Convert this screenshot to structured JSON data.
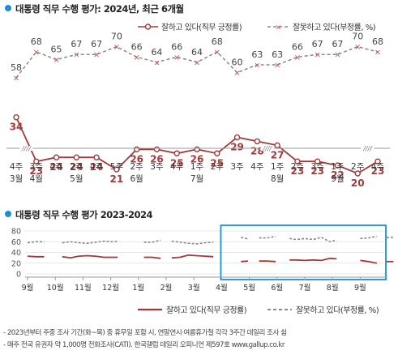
{
  "chart_data": [
    {
      "type": "line",
      "title": "대통령 직무 수행 평가: 2024년, 최근 6개월",
      "legend_placement": "top-right",
      "grid": false,
      "x_labels": [
        {
          "week": "4주",
          "month": "3월"
        },
        {
          "week": "3주",
          "month": "4월"
        },
        {
          "week": "4주",
          "month": ""
        },
        {
          "week": "2주",
          "month": "5월"
        },
        {
          "week": "4주",
          "month": ""
        },
        {
          "week": "5주",
          "month": ""
        },
        {
          "week": "2주",
          "month": "6월"
        },
        {
          "week": "3주",
          "month": ""
        },
        {
          "week": "4주",
          "month": ""
        },
        {
          "week": "1주",
          "month": "7월"
        },
        {
          "week": "2주",
          "month": ""
        },
        {
          "week": "3주",
          "month": ""
        },
        {
          "week": "4주",
          "month": ""
        },
        {
          "week": "1주",
          "month": "8월"
        },
        {
          "week": "2주",
          "month": ""
        },
        {
          "week": "3주",
          "month": ""
        },
        {
          "week": "1주",
          "month": "9월"
        },
        {
          "week": "2주",
          "month": ""
        },
        {
          "week": "4주",
          "month": ""
        }
      ],
      "break_after": [
        0,
        12,
        17
      ],
      "series": [
        {
          "name": "잘하고 있다(직무 긍정률)",
          "color": "#a23a3a",
          "values": [
            34,
            23,
            24,
            24,
            24,
            21,
            26,
            26,
            25,
            26,
            25,
            29,
            28,
            27,
            23,
            23,
            22,
            20,
            23
          ]
        },
        {
          "name": "잘못하고 있다(부정률, %)",
          "color": "#8a8a8a",
          "values": [
            58,
            68,
            65,
            67,
            67,
            70,
            66,
            64,
            66,
            64,
            68,
            60,
            63,
            63,
            66,
            67,
            67,
            70,
            68
          ]
        }
      ]
    },
    {
      "type": "line",
      "title": "대통령 직무 수행 평가 2023-2024",
      "legend_placement": "bottom-right",
      "ylim": [
        0,
        80
      ],
      "yticks": [
        0,
        20,
        40,
        60,
        80
      ],
      "grid": true,
      "x_labels": [
        "9월",
        "10월",
        "11월",
        "12월",
        "1월",
        "2월",
        "3월",
        "4월",
        "5월",
        "6월",
        "7월",
        "8월",
        "9월"
      ],
      "highlight": {
        "from": "4월",
        "to": "9월",
        "color": "#1a8fd6"
      },
      "series": [
        {
          "name": "잘하고 있다(직무 긍정률)",
          "color": "#a23a3a",
          "segments": [
            [
              [
                0.0,
                33
              ],
              [
                0.3,
                32
              ],
              [
                0.6,
                32
              ]
            ],
            [
              [
                1.25,
                32
              ],
              [
                1.55,
                30
              ],
              [
                1.85,
                33
              ],
              [
                2.15,
                34
              ],
              [
                2.45,
                33
              ],
              [
                2.75,
                31
              ],
              [
                3.05,
                31
              ],
              [
                3.25,
                31
              ]
            ],
            [
              [
                4.2,
                31
              ],
              [
                4.5,
                31
              ],
              [
                4.8,
                29
              ]
            ],
            [
              [
                5.2,
                30
              ],
              [
                5.5,
                31
              ],
              [
                5.8,
                35
              ],
              [
                6.1,
                34
              ],
              [
                6.4,
                33
              ],
              [
                6.7,
                32
              ]
            ],
            [
              [
                7.7,
                23
              ],
              [
                7.95,
                24
              ]
            ],
            [
              [
                8.35,
                24
              ],
              [
                8.65,
                24
              ],
              [
                8.95,
                23
              ]
            ],
            [
              [
                9.45,
                26
              ],
              [
                9.7,
                26
              ],
              [
                10.0,
                25
              ],
              [
                10.3,
                26
              ],
              [
                10.6,
                25
              ],
              [
                10.9,
                29
              ],
              [
                11.15,
                28
              ]
            ],
            [
              [
                12.0,
                25
              ],
              [
                12.3,
                23
              ],
              [
                12.6,
                20
              ]
            ],
            [
              [
                12.95,
                23
              ],
              [
                13.2,
                23
              ]
            ]
          ]
        },
        {
          "name": "잘못하고 있다(부정률, %)",
          "color": "#8a8a8a",
          "segments": [
            [
              [
                0.0,
                58
              ],
              [
                0.3,
                60
              ],
              [
                0.6,
                60
              ]
            ],
            [
              [
                1.25,
                58
              ],
              [
                1.55,
                60
              ],
              [
                1.85,
                58
              ],
              [
                2.15,
                57
              ],
              [
                2.45,
                59
              ],
              [
                2.75,
                61
              ],
              [
                3.05,
                60
              ],
              [
                3.25,
                61
              ]
            ],
            [
              [
                4.2,
                59
              ],
              [
                4.5,
                59
              ],
              [
                4.8,
                63
              ]
            ],
            [
              [
                5.2,
                61
              ],
              [
                5.5,
                59
              ],
              [
                5.8,
                57
              ],
              [
                6.1,
                56
              ],
              [
                6.4,
                58
              ],
              [
                6.7,
                59
              ]
            ],
            [
              [
                7.7,
                68
              ],
              [
                7.95,
                65
              ]
            ],
            [
              [
                8.35,
                67
              ],
              [
                8.65,
                67
              ],
              [
                8.95,
                70
              ]
            ],
            [
              [
                9.45,
                66
              ],
              [
                9.7,
                64
              ],
              [
                10.0,
                66
              ],
              [
                10.3,
                64
              ],
              [
                10.6,
                68
              ],
              [
                10.9,
                60
              ],
              [
                11.15,
                63
              ]
            ],
            [
              [
                12.0,
                66
              ],
              [
                12.3,
                67
              ],
              [
                12.6,
                70
              ]
            ],
            [
              [
                12.95,
                68
              ],
              [
                13.2,
                68
              ]
            ]
          ]
        }
      ]
    }
  ],
  "notes": [
    "- 2023년부터 주중 조사 기간(화~목) 중 휴무일 포함 시, 연말연시·여름휴가철 각각 3주간 데일리 조사 쉼",
    "- 매주 전국 유권자 약 1,000명 전화조사(CATI). 한국갤럽 데일리 오피니언 제597호 www.gallup.co.kr"
  ]
}
